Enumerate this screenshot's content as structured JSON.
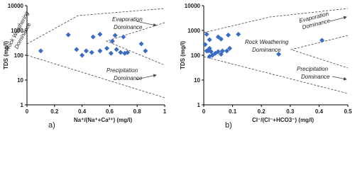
{
  "chart_data": [
    {
      "type": "scatter",
      "panel_label": "a)",
      "x_label": "Na⁺/(Na⁺+Ca²⁺) (mg/l)",
      "y_label": "TDS (mg/l)",
      "log_y": true,
      "xlim": [
        0,
        1
      ],
      "xticks": [
        0,
        0.2,
        0.4,
        0.6,
        0.8,
        1
      ],
      "ylim": [
        1,
        10000
      ],
      "yticks": [
        1,
        10,
        100,
        1000,
        10000
      ],
      "x": [
        0.1,
        0.3,
        0.48,
        0.53,
        0.36,
        0.43,
        0.53,
        0.58,
        0.61,
        0.65,
        0.68,
        0.71,
        0.73,
        0.62,
        0.64,
        0.7,
        0.83,
        0.86,
        0.4,
        0.47
      ],
      "series": [
        {
          "color": "#3a6cc4",
          "values": [
            150,
            670,
            550,
            700,
            170,
            150,
            150,
            190,
            120,
            170,
            130,
            120,
            130,
            370,
            630,
            550,
            290,
            150,
            100,
            130
          ]
        }
      ],
      "annotations": [
        {
          "lines": [
            "Rock Weathering",
            "Dominance"
          ]
        },
        {
          "lines": [
            "Evaporation",
            "Dominance"
          ]
        },
        {
          "lines": [
            "Precipitation",
            "Dominance"
          ]
        }
      ]
    },
    {
      "type": "scatter",
      "panel_label": "b)",
      "x_label": "Cl⁻/(Cl⁻+HCO3⁻) (mg/l)",
      "y_label": "TDS (mg/l)",
      "log_y": true,
      "xlim": [
        0,
        0.5
      ],
      "xticks": [
        0,
        0.1,
        0.2,
        0.3,
        0.4,
        0.5
      ],
      "ylim": [
        1,
        10000
      ],
      "yticks": [
        1,
        10,
        100,
        1000,
        10000
      ],
      "x": [
        0.01,
        0.015,
        0.025,
        0.04,
        0.05,
        0.02,
        0.03,
        0.06,
        0.065,
        0.08,
        0.09,
        0.01,
        0.02,
        0.05,
        0.06,
        0.085,
        0.12,
        0.005,
        0.26,
        0.41,
        0.02
      ],
      "series": [
        {
          "color": "#3a6cc4",
          "values": [
            150,
            150,
            140,
            120,
            140,
            190,
            100,
            110,
            150,
            150,
            190,
            700,
            420,
            550,
            450,
            650,
            700,
            270,
            110,
            400,
            90
          ]
        }
      ],
      "annotations": [
        {
          "lines": [
            "Evaporation",
            "Dominance"
          ]
        },
        {
          "lines": [
            "Rock Weathering",
            "Dominance"
          ]
        },
        {
          "lines": [
            "Precipitation",
            "Dominance"
          ]
        }
      ]
    }
  ]
}
